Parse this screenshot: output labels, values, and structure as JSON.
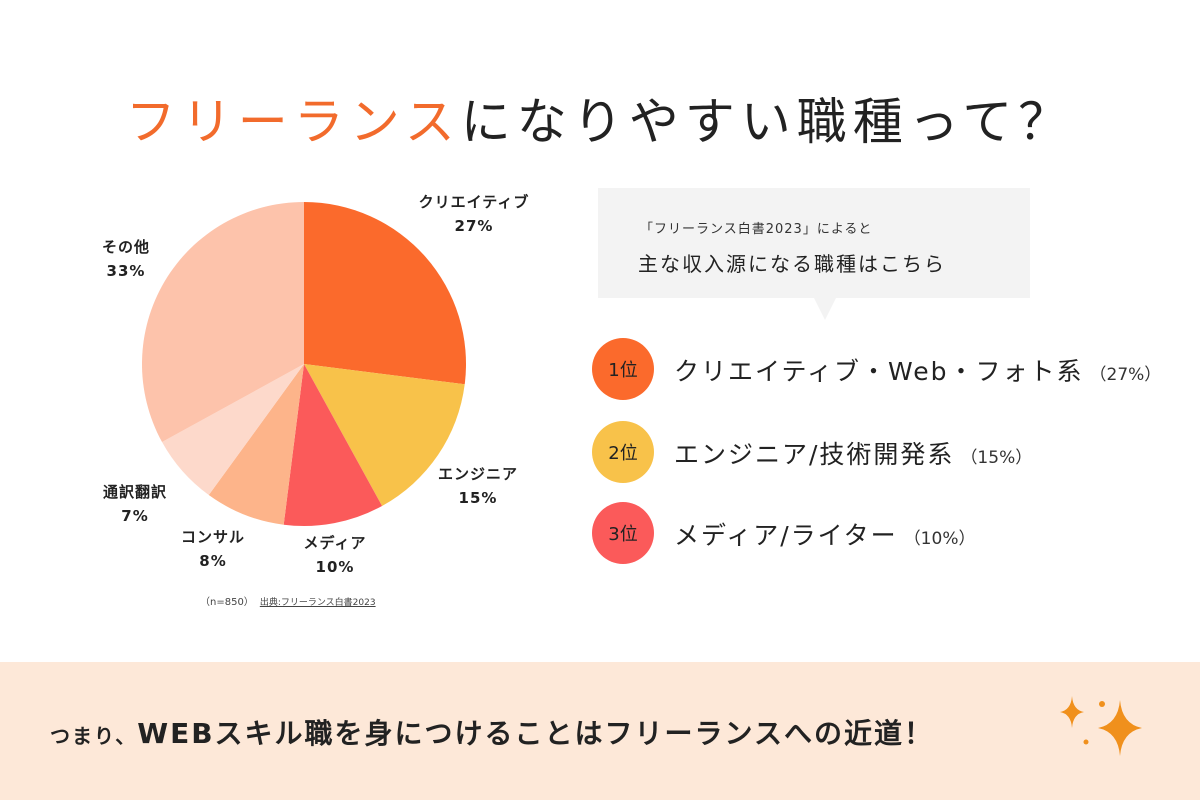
{
  "title": {
    "accent": "フリーランス",
    "rest": "になりやすい職種って？"
  },
  "colors": {
    "accent": "#f26b2c",
    "bottom_bg": "#fde8d8",
    "sparkle": "#f0901c"
  },
  "chart_data": {
    "type": "pie",
    "start": "12 o'clock",
    "direction": "clockwise",
    "slices": [
      {
        "label": "クリエイティブ",
        "value": 27,
        "value_label": "27%",
        "color": "#fb6a2c"
      },
      {
        "label": "エンジニア",
        "value": 15,
        "value_label": "15%",
        "color": "#f8c24a"
      },
      {
        "label": "メディア",
        "value": 10,
        "value_label": "10%",
        "color": "#fb5a5a"
      },
      {
        "label": "コンサル",
        "value": 8,
        "value_label": "8%",
        "color": "#fdb48a"
      },
      {
        "label": "通訳翻訳",
        "value": 7,
        "value_label": "7%",
        "color": "#fdd9cb"
      },
      {
        "label": "その他",
        "value": 33,
        "value_label": "33%",
        "color": "#fdc3ab"
      }
    ],
    "note": "（n=850）",
    "source": "出典:フリーランス白書2023"
  },
  "callout": {
    "line1": "「フリーランス白書2023」によると",
    "line2": "主な収入源になる職種はこちら"
  },
  "ranking": [
    {
      "rank": "1位",
      "label": "クリエイティブ・Web・フォト系",
      "pct": "（27%）",
      "color": "#fb6a2c"
    },
    {
      "rank": "2位",
      "label": "エンジニア/技術開発系",
      "pct": "（15%）",
      "color": "#f8c24a"
    },
    {
      "rank": "3位",
      "label": "メディア/ライター",
      "pct": "（10%）",
      "color": "#fb5a5a"
    }
  ],
  "bottom": {
    "prefix": "つまり、",
    "message": "WEBスキル職を身につけることはフリーランスへの近道！"
  },
  "icons": [
    "sparkle-icon"
  ]
}
